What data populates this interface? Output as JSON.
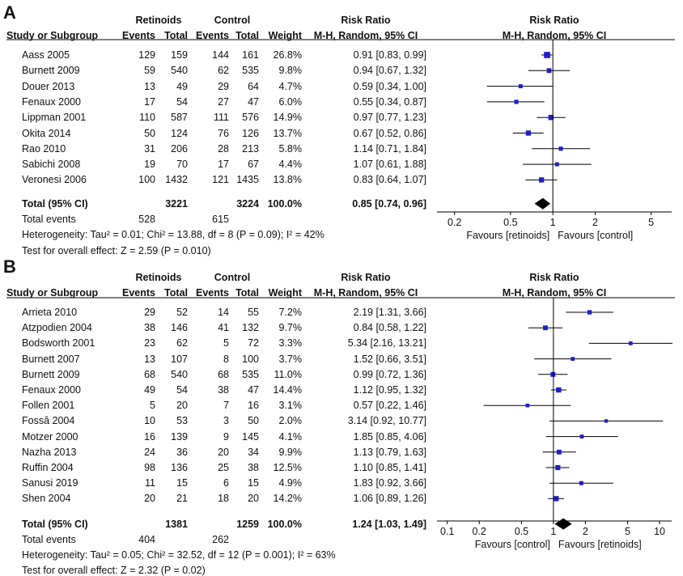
{
  "chart_data": [
    {
      "type": "forest",
      "panel": "A",
      "headers": {
        "group1": "Retinoids",
        "group2": "Control",
        "rr": "Risk Ratio",
        "plot": "Risk Ratio",
        "study": "Study or Subgroup",
        "events": "Events",
        "total": "Total",
        "events2": "Events",
        "total2": "Total",
        "weight": "Weight",
        "method": "M-H, Random, 95% CI",
        "plot_method": "M-H, Random, 95% CI"
      },
      "x_scale": "log",
      "xlim": [
        0.15,
        7
      ],
      "ticks": [
        0.2,
        0.5,
        1,
        2,
        5
      ],
      "tick_labels": [
        "0.2",
        "0.5",
        "1",
        "2",
        "5"
      ],
      "favours_left": "Favours [retinoids]",
      "favours_right": "Favours [control]",
      "studies": [
        {
          "name": "Aass 2005",
          "e1": "129",
          "n1": "159",
          "e2": "144",
          "n2": "161",
          "weight": "26.8%",
          "ci_text": "0.91 [0.83, 0.99]",
          "rr": 0.91,
          "lo": 0.83,
          "hi": 0.99,
          "w": 26.8
        },
        {
          "name": "Burnett 2009",
          "e1": "59",
          "n1": "540",
          "e2": "62",
          "n2": "535",
          "weight": "9.8%",
          "ci_text": "0.94 [0.67, 1.32]",
          "rr": 0.94,
          "lo": 0.67,
          "hi": 1.32,
          "w": 9.8
        },
        {
          "name": "Douer 2013",
          "e1": "13",
          "n1": "49",
          "e2": "29",
          "n2": "64",
          "weight": "4.7%",
          "ci_text": "0.59 [0.34, 1.00]",
          "rr": 0.59,
          "lo": 0.34,
          "hi": 1.0,
          "w": 4.7
        },
        {
          "name": "Fenaux 2000",
          "e1": "17",
          "n1": "54",
          "e2": "27",
          "n2": "47",
          "weight": "6.0%",
          "ci_text": "0.55 [0.34, 0.87]",
          "rr": 0.55,
          "lo": 0.34,
          "hi": 0.87,
          "w": 6.0
        },
        {
          "name": "Lippman 2001",
          "e1": "110",
          "n1": "587",
          "e2": "111",
          "n2": "576",
          "weight": "14.9%",
          "ci_text": "0.97 [0.77, 1.23]",
          "rr": 0.97,
          "lo": 0.77,
          "hi": 1.23,
          "w": 14.9
        },
        {
          "name": "Okita 2014",
          "e1": "50",
          "n1": "124",
          "e2": "76",
          "n2": "126",
          "weight": "13.7%",
          "ci_text": "0.67 [0.52, 0.86]",
          "rr": 0.67,
          "lo": 0.52,
          "hi": 0.86,
          "w": 13.7
        },
        {
          "name": "Rao 2010",
          "e1": "31",
          "n1": "206",
          "e2": "28",
          "n2": "213",
          "weight": "5.8%",
          "ci_text": "1.14 [0.71, 1.84]",
          "rr": 1.14,
          "lo": 0.71,
          "hi": 1.84,
          "w": 5.8
        },
        {
          "name": "Sabichi 2008",
          "e1": "19",
          "n1": "70",
          "e2": "17",
          "n2": "67",
          "weight": "4.4%",
          "ci_text": "1.07 [0.61, 1.88]",
          "rr": 1.07,
          "lo": 0.61,
          "hi": 1.88,
          "w": 4.4
        },
        {
          "name": "Veronesi 2006",
          "e1": "100",
          "n1": "1432",
          "e2": "121",
          "n2": "1435",
          "weight": "13.8%",
          "ci_text": "0.83 [0.64, 1.07]",
          "rr": 0.83,
          "lo": 0.64,
          "hi": 1.07,
          "w": 13.8
        }
      ],
      "total": {
        "label": "Total (95% CI)",
        "n1": "3221",
        "n2": "3224",
        "weight": "100.0%",
        "ci_text": "0.85 [0.74, 0.96]",
        "rr": 0.85,
        "lo": 0.74,
        "hi": 0.96
      },
      "total_events": {
        "label": "Total events",
        "e1": "528",
        "e2": "615"
      },
      "heterogeneity": "Heterogeneity: Tau² = 0.01; Chi² = 13.88, df = 8 (P = 0.09); I² = 42%",
      "overall_effect": "Test for overall effect: Z = 2.59 (P = 0.010)"
    },
    {
      "type": "forest",
      "panel": "B",
      "headers": {
        "group1": "Retinoids",
        "group2": "Control",
        "rr": "Risk Ratio",
        "plot": "Risk Ratio",
        "study": "Study or Subgroup",
        "events": "Events",
        "total": "Total",
        "events2": "Events",
        "total2": "Total",
        "weight": "Weight",
        "method": "M-H, Random, 95% CI",
        "plot_method": "M-H, Random, 95% CI"
      },
      "x_scale": "log",
      "xlim": [
        0.08,
        13
      ],
      "ticks": [
        0.1,
        0.2,
        0.5,
        1,
        2,
        5,
        10
      ],
      "tick_labels": [
        "0.1",
        "0.2",
        "0.5",
        "1",
        "2",
        "5",
        "10"
      ],
      "favours_left": "Favours [control]",
      "favours_right": "Favours [retinoids]",
      "studies": [
        {
          "name": "Arrieta 2010",
          "e1": "29",
          "n1": "52",
          "e2": "14",
          "n2": "55",
          "weight": "7.2%",
          "ci_text": "2.19 [1.31, 3.66]",
          "rr": 2.19,
          "lo": 1.31,
          "hi": 3.66,
          "w": 7.2
        },
        {
          "name": "Atzpodien 2004",
          "e1": "38",
          "n1": "146",
          "e2": "41",
          "n2": "132",
          "weight": "9.7%",
          "ci_text": "0.84 [0.58, 1.22]",
          "rr": 0.84,
          "lo": 0.58,
          "hi": 1.22,
          "w": 9.7
        },
        {
          "name": "Bodsworth 2001",
          "e1": "23",
          "n1": "62",
          "e2": "5",
          "n2": "72",
          "weight": "3.3%",
          "ci_text": "5.34 [2.16, 13.21]",
          "rr": 5.34,
          "lo": 2.16,
          "hi": 13.21,
          "w": 3.3
        },
        {
          "name": "Burnett 2007",
          "e1": "13",
          "n1": "107",
          "e2": "8",
          "n2": "100",
          "weight": "3.7%",
          "ci_text": "1.52 [0.66, 3.51]",
          "rr": 1.52,
          "lo": 0.66,
          "hi": 3.51,
          "w": 3.7
        },
        {
          "name": "Burnett 2009",
          "e1": "68",
          "n1": "540",
          "e2": "68",
          "n2": "535",
          "weight": "11.0%",
          "ci_text": "0.99 [0.72, 1.36]",
          "rr": 0.99,
          "lo": 0.72,
          "hi": 1.36,
          "w": 11.0
        },
        {
          "name": "Fenaux 2000",
          "e1": "49",
          "n1": "54",
          "e2": "38",
          "n2": "47",
          "weight": "14.4%",
          "ci_text": "1.12 [0.95, 1.32]",
          "rr": 1.12,
          "lo": 0.95,
          "hi": 1.32,
          "w": 14.4
        },
        {
          "name": "Follen 2001",
          "e1": "5",
          "n1": "20",
          "e2": "7",
          "n2": "16",
          "weight": "3.1%",
          "ci_text": "0.57 [0.22, 1.46]",
          "rr": 0.57,
          "lo": 0.22,
          "hi": 1.46,
          "w": 3.1
        },
        {
          "name": "Fossâ 2004",
          "e1": "10",
          "n1": "53",
          "e2": "3",
          "n2": "50",
          "weight": "2.0%",
          "ci_text": "3.14 [0.92, 10.77]",
          "rr": 3.14,
          "lo": 0.92,
          "hi": 10.77,
          "w": 2.0
        },
        {
          "name": "Motzer 2000",
          "e1": "16",
          "n1": "139",
          "e2": "9",
          "n2": "145",
          "weight": "4.1%",
          "ci_text": "1.85 [0.85, 4.06]",
          "rr": 1.85,
          "lo": 0.85,
          "hi": 4.06,
          "w": 4.1
        },
        {
          "name": "Nazha 2013",
          "e1": "24",
          "n1": "36",
          "e2": "20",
          "n2": "34",
          "weight": "9.9%",
          "ci_text": "1.13 [0.79, 1.63]",
          "rr": 1.13,
          "lo": 0.79,
          "hi": 1.63,
          "w": 9.9
        },
        {
          "name": "Ruffin 2004",
          "e1": "98",
          "n1": "136",
          "e2": "25",
          "n2": "38",
          "weight": "12.5%",
          "ci_text": "1.10 [0.85, 1.41]",
          "rr": 1.1,
          "lo": 0.85,
          "hi": 1.41,
          "w": 12.5
        },
        {
          "name": "Sanusi 2019",
          "e1": "11",
          "n1": "15",
          "e2": "6",
          "n2": "15",
          "weight": "4.9%",
          "ci_text": "1.83 [0.92, 3.66]",
          "rr": 1.83,
          "lo": 0.92,
          "hi": 3.66,
          "w": 4.9
        },
        {
          "name": "Shen 2004",
          "e1": "20",
          "n1": "21",
          "e2": "18",
          "n2": "20",
          "weight": "14.2%",
          "ci_text": "1.06 [0.89, 1.26]",
          "rr": 1.06,
          "lo": 0.89,
          "hi": 1.26,
          "w": 14.2
        }
      ],
      "total": {
        "label": "Total (95% CI)",
        "n1": "1381",
        "n2": "1259",
        "weight": "100.0%",
        "ci_text": "1.24 [1.03, 1.49]",
        "rr": 1.24,
        "lo": 1.03,
        "hi": 1.49
      },
      "total_events": {
        "label": "Total events",
        "e1": "404",
        "e2": "262"
      },
      "heterogeneity": "Heterogeneity: Tau² = 0.05; Chi² = 32.52, df = 12 (P = 0.001); I² = 63%",
      "overall_effect": "Test for overall effect: Z = 2.32 (P = 0.02)"
    }
  ],
  "colors": {
    "marker": "#1f1fc8",
    "line": "#000000",
    "diamond": "#000000"
  }
}
